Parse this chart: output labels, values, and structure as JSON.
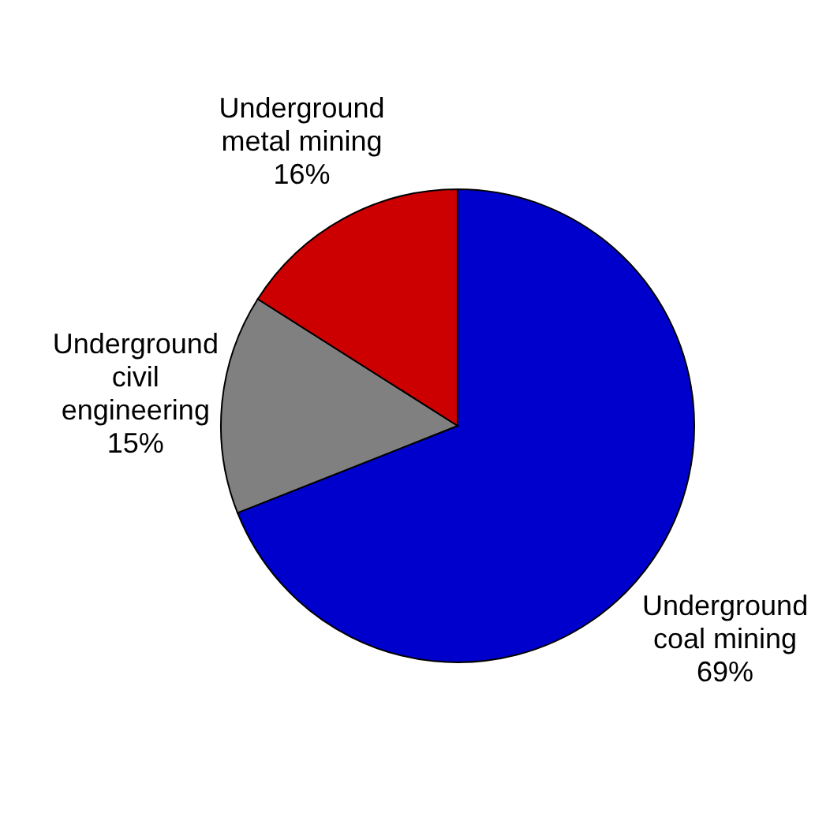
{
  "chart_data": {
    "type": "pie",
    "categories": [
      "Underground coal mining",
      "Underground civil engineering",
      "Underground metal mining"
    ],
    "values": [
      69,
      15,
      16
    ],
    "colors": [
      "#0000cc",
      "#808080",
      "#cc0000"
    ],
    "value_labels": [
      "69%",
      "15%",
      "16%"
    ]
  }
}
